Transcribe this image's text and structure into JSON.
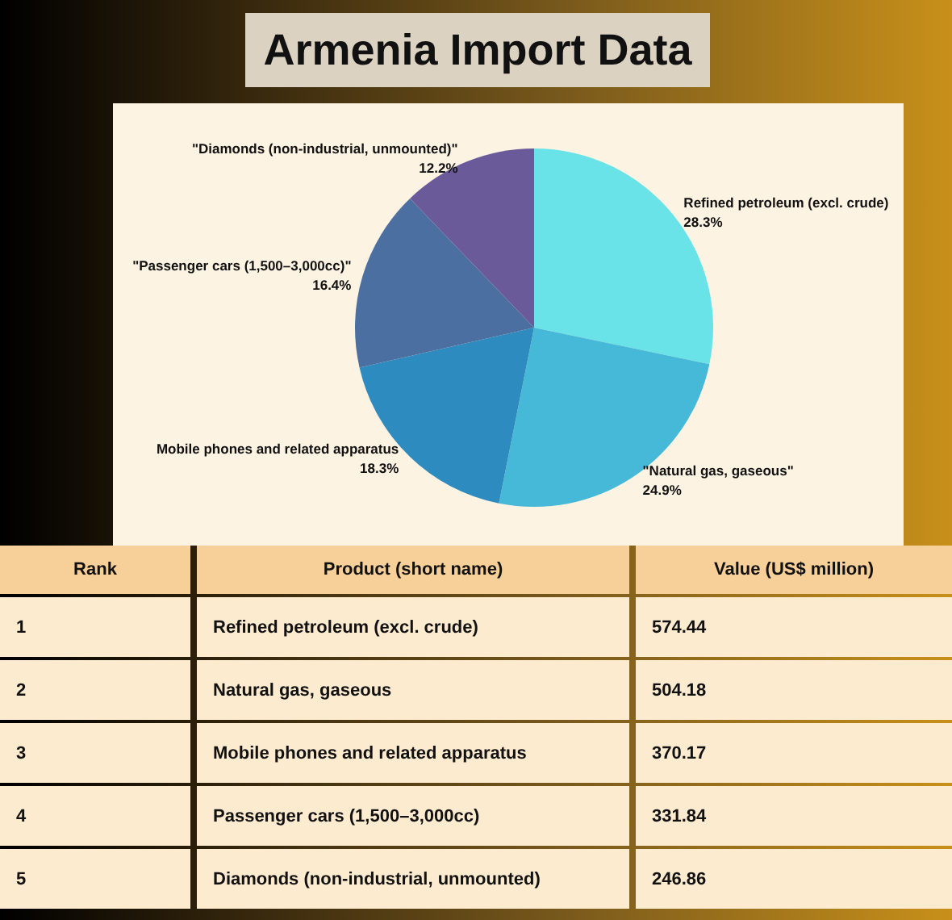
{
  "chart_data": {
    "type": "pie",
    "title": "Armenia Import Data",
    "categories": [
      "Refined petroleum (excl. crude)",
      "\"Natural gas, gaseous\"",
      "Mobile phones and related apparatus",
      "\"Passenger cars (1,500–3,000cc)\"",
      "\"Diamonds (non-industrial, unmounted)\""
    ],
    "values": [
      28.3,
      24.9,
      18.3,
      16.4,
      12.2
    ],
    "value_labels": [
      "28.3%",
      "24.9%",
      "18.3%",
      "16.4%",
      "12.2%"
    ],
    "colors": [
      "#6ae3e8",
      "#46b8d8",
      "#2e8bbf",
      "#4a6fa0",
      "#6a5a9a"
    ],
    "legend": false,
    "annotations": [
      "Rank",
      "Product (short name)",
      "Value (US$ million)",
      "1",
      "Refined petroleum (excl. crude)",
      "574.44",
      "2",
      "Natural gas, gaseous",
      "504.18",
      "3",
      "Mobile phones and related apparatus",
      "370.17",
      "4",
      "Passenger cars (1,500–3,000cc)",
      "331.84",
      "5",
      "Diamonds (non-industrial, unmounted)",
      "246.86"
    ]
  }
}
